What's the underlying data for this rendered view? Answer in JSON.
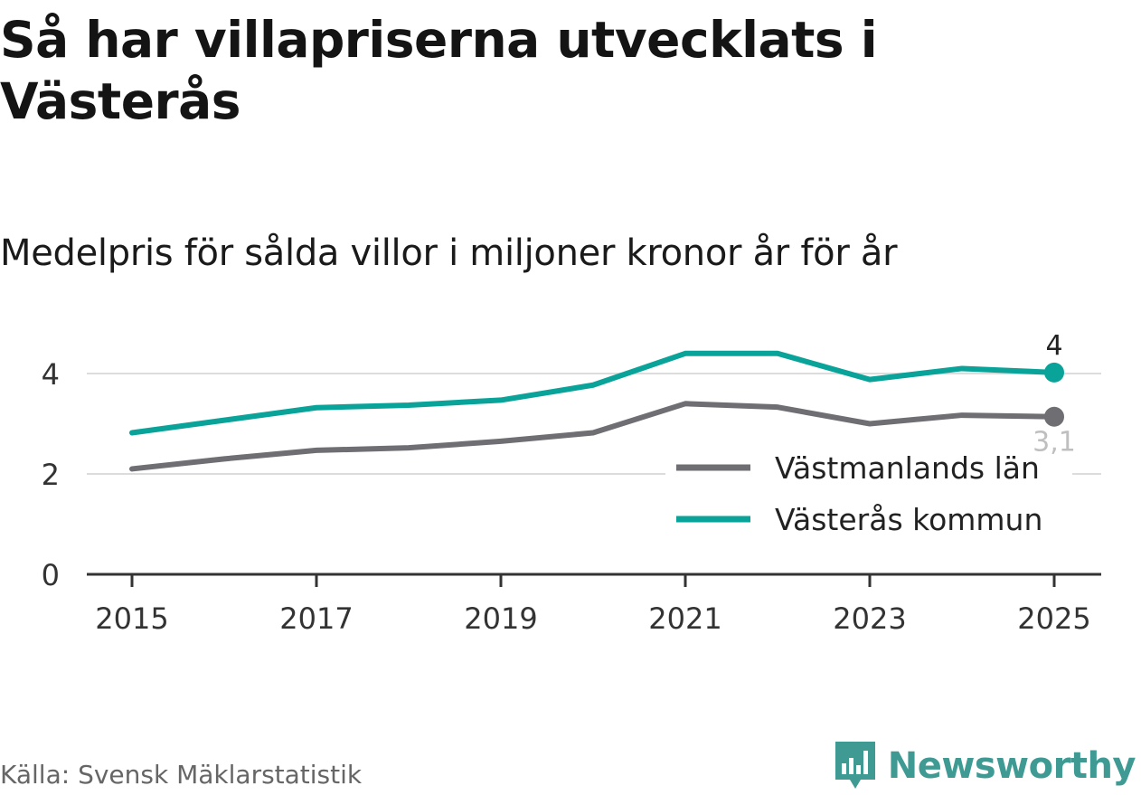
{
  "title": "Så har villapriserna utvecklats i Västerås",
  "subtitle": "Medelpris för sålda villor i miljoner kronor år för år",
  "source": "Källa: Svensk Mäklarstatistik",
  "brand": {
    "name": "Newsworthy",
    "icon": "newsworthy-logo-icon",
    "color": "#3f9a93"
  },
  "chart_data": {
    "type": "line",
    "x": [
      2015,
      2016,
      2017,
      2018,
      2019,
      2020,
      2021,
      2022,
      2023,
      2024,
      2025
    ],
    "x_ticks": [
      "2015",
      "2017",
      "2019",
      "2021",
      "2023",
      "2025"
    ],
    "y_ticks": [
      "0",
      "2",
      "4"
    ],
    "ylim": [
      0,
      4.5
    ],
    "grid": "horizontal",
    "legend_position": "bottom-right",
    "series": [
      {
        "name": "Västmanlands län",
        "color": "#6e6e73",
        "values": [
          2.1,
          2.3,
          2.47,
          2.52,
          2.65,
          2.82,
          3.4,
          3.33,
          3.0,
          3.17,
          3.14
        ],
        "end_label": "3,1"
      },
      {
        "name": "Västerås kommun",
        "color": "#0aa39a",
        "values": [
          2.82,
          3.07,
          3.32,
          3.37,
          3.47,
          3.77,
          4.4,
          4.4,
          3.88,
          4.1,
          4.02
        ],
        "end_label": "4"
      }
    ]
  }
}
